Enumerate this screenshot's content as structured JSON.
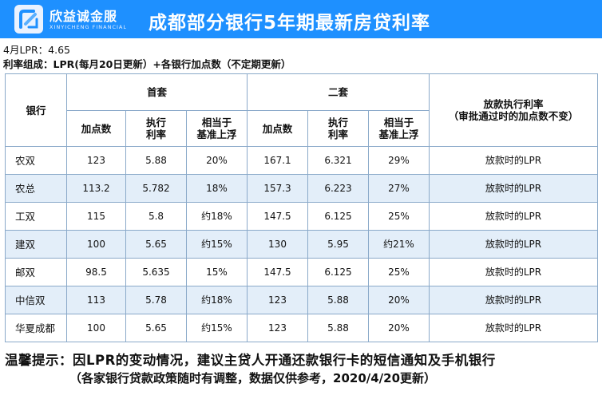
{
  "header": {
    "brand_cn": "欣益诚金服",
    "brand_en": "XINYICHENG FINANCIAL",
    "title": "成都部分银行5年期最新房贷利率",
    "bg_color": "#1e90ff"
  },
  "info": {
    "lpr_line": "4月LPR：4.65",
    "composition_line": "利率组成：LPR(每月20日更新）+各银行加点数（不定期更新）"
  },
  "table": {
    "bank_header": "银行",
    "first_home_header": "首套",
    "second_home_header": "二套",
    "exec_header": "放款执行利率",
    "exec_subheader": "（审批通过时的加点数不变）",
    "sub_headers": {
      "points": "加点数",
      "rate_line1": "执行",
      "rate_line2": "利率",
      "float_line1": "相当于",
      "float_line2": "基准上浮"
    },
    "rows": [
      {
        "bank": "农双",
        "p1": "123",
        "r1": "5.88",
        "f1": "20%",
        "p2": "167.1",
        "r2": "6.321",
        "f2": "29%",
        "exec": "放款时的LPR"
      },
      {
        "bank": "农总",
        "p1": "113.2",
        "r1": "5.782",
        "f1": "18%",
        "p2": "157.3",
        "r2": "6.223",
        "f2": "27%",
        "exec": "放款时的LPR"
      },
      {
        "bank": "工双",
        "p1": "115",
        "r1": "5.8",
        "f1": "约18%",
        "p2": "147.5",
        "r2": "6.125",
        "f2": "25%",
        "exec": "放款时的LPR"
      },
      {
        "bank": "建双",
        "p1": "100",
        "r1": "5.65",
        "f1": "约15%",
        "p2": "130",
        "r2": "5.95",
        "f2": "约21%",
        "exec": "放款时的LPR"
      },
      {
        "bank": "邮双",
        "p1": "98.5",
        "r1": "5.635",
        "f1": "15%",
        "p2": "147.5",
        "r2": "6.125",
        "f2": "25%",
        "exec": "放款时的LPR"
      },
      {
        "bank": "中信双",
        "p1": "113",
        "r1": "5.78",
        "f1": "约18%",
        "p2": "123",
        "r2": "5.88",
        "f2": "20%",
        "exec": "放款时的LPR"
      },
      {
        "bank": "华夏成都",
        "p1": "100",
        "r1": "5.65",
        "f1": "约15%",
        "p2": "123",
        "r2": "5.88",
        "f2": "20%",
        "exec": "放款时的LPR"
      }
    ],
    "alt_row_color": "#e3eef9"
  },
  "footer": {
    "tip_line1": "温馨提示：因LPR的变动情况，建议主贷人开通还款银行卡的短信通知及手机银行",
    "tip_line2": "（各家银行贷款政策随时有调整，数据仅供参考，2020/4/20更新）"
  }
}
